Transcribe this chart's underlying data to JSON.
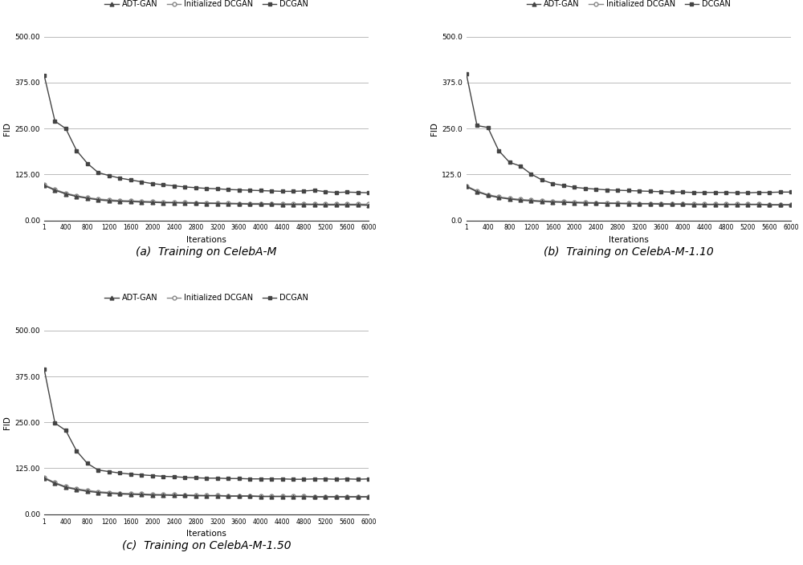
{
  "iterations": [
    1,
    200,
    400,
    600,
    800,
    1000,
    1200,
    1400,
    1600,
    1800,
    2000,
    2200,
    2400,
    2600,
    2800,
    3000,
    3200,
    3400,
    3600,
    3800,
    4000,
    4200,
    4400,
    4600,
    4800,
    5000,
    5200,
    5400,
    5600,
    5800,
    6000
  ],
  "subplot_a": {
    "title": "(a)  Training on CelebA-M",
    "ylim": [
      0,
      500
    ],
    "yticks": [
      0.0,
      125.0,
      250.0,
      375.0,
      500.0
    ],
    "ytick_labels": [
      "0.00",
      "125.00",
      "250.00",
      "375.00",
      "500.00"
    ],
    "adt_gan": [
      95,
      82,
      72,
      65,
      60,
      56,
      53,
      52,
      51,
      50,
      49,
      48,
      48,
      47,
      47,
      46,
      46,
      45,
      45,
      44,
      44,
      44,
      43,
      43,
      43,
      43,
      42,
      42,
      42,
      42,
      41
    ],
    "init_dcgan": [
      97,
      84,
      74,
      67,
      62,
      58,
      56,
      54,
      53,
      52,
      51,
      50,
      49,
      49,
      48,
      48,
      47,
      47,
      46,
      46,
      46,
      45,
      45,
      45,
      45,
      44,
      44,
      44,
      44,
      44,
      44
    ],
    "dcgan": [
      395,
      270,
      250,
      190,
      155,
      130,
      122,
      115,
      110,
      105,
      100,
      97,
      94,
      91,
      89,
      87,
      86,
      84,
      83,
      82,
      81,
      80,
      79,
      79,
      80,
      82,
      78,
      76,
      77,
      76,
      75
    ]
  },
  "subplot_b": {
    "title": "(b)  Training on CelebA-M-1.10",
    "ylim": [
      0,
      500
    ],
    "yticks": [
      0.0,
      125.0,
      250.0,
      375.0,
      500.0
    ],
    "ytick_labels": [
      "0.0",
      "125.0",
      "250.0",
      "375.0",
      "500.0"
    ],
    "adt_gan": [
      92,
      78,
      68,
      62,
      58,
      55,
      53,
      51,
      50,
      49,
      48,
      47,
      47,
      46,
      46,
      45,
      45,
      45,
      44,
      44,
      44,
      43,
      43,
      43,
      43,
      43,
      43,
      43,
      42,
      42,
      42
    ],
    "init_dcgan": [
      94,
      80,
      70,
      64,
      60,
      57,
      55,
      53,
      52,
      51,
      50,
      49,
      48,
      48,
      47,
      47,
      46,
      46,
      46,
      45,
      45,
      45,
      44,
      44,
      44,
      44,
      44,
      44,
      43,
      43,
      43
    ],
    "dcgan": [
      400,
      258,
      253,
      190,
      158,
      148,
      126,
      110,
      100,
      95,
      90,
      87,
      85,
      83,
      82,
      81,
      80,
      79,
      78,
      77,
      77,
      76,
      76,
      76,
      76,
      75,
      75,
      76,
      76,
      77,
      77
    ]
  },
  "subplot_c": {
    "title": "(c)  Training on CelebA-M-1.50",
    "ylim": [
      0,
      500
    ],
    "yticks": [
      0.0,
      125.0,
      250.0,
      375.0,
      500.0
    ],
    "ytick_labels": [
      "0.00",
      "125.00",
      "250.00",
      "375.00",
      "500.00"
    ],
    "adt_gan": [
      98,
      84,
      73,
      67,
      62,
      59,
      57,
      55,
      54,
      53,
      52,
      52,
      51,
      51,
      50,
      50,
      50,
      49,
      49,
      49,
      48,
      48,
      48,
      48,
      48,
      47,
      47,
      47,
      47,
      47,
      47
    ],
    "init_dcgan": [
      100,
      86,
      75,
      69,
      65,
      61,
      59,
      57,
      56,
      55,
      54,
      53,
      53,
      52,
      52,
      51,
      51,
      50,
      50,
      50,
      49,
      49,
      49,
      49,
      49,
      48,
      48,
      48,
      48,
      48,
      48
    ],
    "dcgan": [
      395,
      248,
      228,
      172,
      138,
      120,
      116,
      112,
      109,
      107,
      105,
      103,
      102,
      100,
      99,
      98,
      98,
      97,
      97,
      96,
      96,
      96,
      96,
      95,
      95,
      96,
      96,
      95,
      96,
      95,
      96
    ]
  },
  "xticks": [
    1,
    400,
    800,
    1200,
    1600,
    2000,
    2400,
    2800,
    3200,
    3600,
    4000,
    4400,
    4800,
    5200,
    5600,
    6000
  ],
  "xlabel": "Iterations",
  "ylabel": "FID",
  "line_color_dcgan": "#444444",
  "line_color_adt": "#444444",
  "line_color_init": "#888888",
  "marker_dcgan": "s",
  "marker_adt": "^",
  "marker_init": "o",
  "markersize": 3.5,
  "linewidth": 1.0,
  "legend_labels": [
    "ADT-GAN",
    "Initialized DCGAN",
    "DCGAN"
  ],
  "background_color": "#ffffff",
  "grid_color": "#bbbbbb"
}
